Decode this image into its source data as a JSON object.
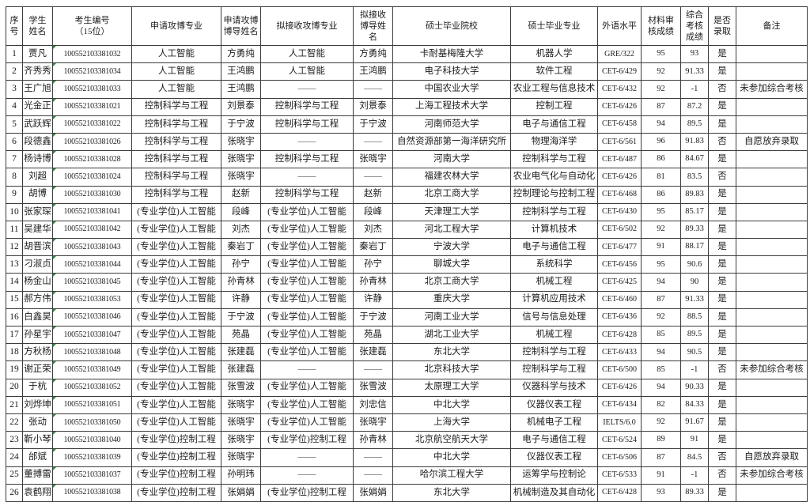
{
  "colors": {
    "grid": "#3c3c3c",
    "dash_text": "#4a4a4a",
    "error_indicator_green": "#2e8b3d"
  },
  "empty_marker": "——",
  "table": {
    "columns": [
      {
        "id": "index",
        "label": "序\n号"
      },
      {
        "id": "student-name",
        "label": "学生\n姓名"
      },
      {
        "id": "candidate-id",
        "label": "考生编号\n（15位）"
      },
      {
        "id": "applied-phd-major",
        "label": "申请攻博专业"
      },
      {
        "id": "applied-phd-advisor",
        "label": "申请攻博\n博导姓名"
      },
      {
        "id": "proposed-phd-major",
        "label": "拟接收攻博专业"
      },
      {
        "id": "proposed-phd-advisor",
        "label": "拟接收\n博导姓\n名"
      },
      {
        "id": "master-school",
        "label": "硕士毕业院校"
      },
      {
        "id": "master-major",
        "label": "硕士毕业专业"
      },
      {
        "id": "foreign-language",
        "label": "外语水平"
      },
      {
        "id": "material-review-score",
        "label": "材料审\n核成绩"
      },
      {
        "id": "comprehensive-score",
        "label": "综合\n考核\n成绩"
      },
      {
        "id": "admitted",
        "label": "是否\n录取"
      },
      {
        "id": "remarks",
        "label": "备注"
      }
    ],
    "rows": [
      [
        "1",
        "贾凡",
        "100552103381032",
        "人工智能",
        "方勇纯",
        "人工智能",
        "方勇纯",
        "卡耐基梅隆大学",
        "机器人学",
        "GRE/322",
        "95",
        "93",
        "是",
        ""
      ],
      [
        "2",
        "齐秀秀",
        "100552103381034",
        "人工智能",
        "王鸿鹏",
        "人工智能",
        "王鸿鹏",
        "电子科技大学",
        "软件工程",
        "CET-6/429",
        "92",
        "91.33",
        "是",
        ""
      ],
      [
        "3",
        "王广旭",
        "100552103381033",
        "人工智能",
        "王鸿鹏",
        "——",
        "——",
        "中国农业大学",
        "农业工程与信息技术",
        "CET-6/432",
        "92",
        "-1",
        "否",
        "未参加综合考核"
      ],
      [
        "4",
        "光金正",
        "100552103381021",
        "控制科学与工程",
        "刘景泰",
        "控制科学与工程",
        "刘景泰",
        "上海工程技术大学",
        "控制工程",
        "CET-6/426",
        "87",
        "87.2",
        "是",
        ""
      ],
      [
        "5",
        "武跃辉",
        "100552103381022",
        "控制科学与工程",
        "于宁波",
        "控制科学与工程",
        "于宁波",
        "河南师范大学",
        "电子与通信工程",
        "CET-6/458",
        "94",
        "89.5",
        "是",
        ""
      ],
      [
        "6",
        "段德鑫",
        "100552103381026",
        "控制科学与工程",
        "张晓宇",
        "——",
        "——",
        "自然资源部第一海洋研究所",
        "物理海洋学",
        "CET-6/561",
        "96",
        "91.83",
        "否",
        "自愿放弃录取"
      ],
      [
        "7",
        "杨诗博",
        "100552103381028",
        "控制科学与工程",
        "张晓宇",
        "控制科学与工程",
        "张晓宇",
        "河南大学",
        "控制科学与工程",
        "CET-6/487",
        "86",
        "84.67",
        "是",
        ""
      ],
      [
        "8",
        "刘超",
        "100552103381024",
        "控制科学与工程",
        "张晓宇",
        "——",
        "——",
        "福建农林大学",
        "农业电气化与自动化",
        "CET-6/426",
        "81",
        "83.5",
        "否",
        ""
      ],
      [
        "9",
        "胡博",
        "100552103381030",
        "控制科学与工程",
        "赵新",
        "控制科学与工程",
        "赵新",
        "北京工商大学",
        "控制理论与控制工程",
        "CET-6/468",
        "86",
        "89.83",
        "是",
        ""
      ],
      [
        "10",
        "张家琛",
        "100552103381041",
        "(专业学位)人工智能",
        "段峰",
        "(专业学位)人工智能",
        "段峰",
        "天津理工大学",
        "控制科学与工程",
        "CET-6/430",
        "95",
        "85.17",
        "是",
        ""
      ],
      [
        "11",
        "吴建华",
        "100552103381042",
        "(专业学位)人工智能",
        "刘杰",
        "(专业学位)人工智能",
        "刘杰",
        "河北工程大学",
        "计算机技术",
        "CET-6/502",
        "92",
        "89.33",
        "是",
        ""
      ],
      [
        "12",
        "胡晋滨",
        "100552103381043",
        "(专业学位)人工智能",
        "秦岩丁",
        "(专业学位)人工智能",
        "秦岩丁",
        "宁波大学",
        "电子与通信工程",
        "CET-6/477",
        "91",
        "88.17",
        "是",
        ""
      ],
      [
        "13",
        "刁淑贞",
        "100552103381044",
        "(专业学位)人工智能",
        "孙宁",
        "(专业学位)人工智能",
        "孙宁",
        "聊城大学",
        "系统科学",
        "CET-6/456",
        "95",
        "90.6",
        "是",
        ""
      ],
      [
        "14",
        "杨金山",
        "100552103381045",
        "(专业学位)人工智能",
        "孙青林",
        "(专业学位)人工智能",
        "孙青林",
        "北京工商大学",
        "机械工程",
        "CET-6/425",
        "94",
        "90",
        "是",
        ""
      ],
      [
        "15",
        "郝方伟",
        "100552103381053",
        "(专业学位)人工智能",
        "许静",
        "(专业学位)人工智能",
        "许静",
        "重庆大学",
        "计算机应用技术",
        "CET-6/460",
        "87",
        "91.33",
        "是",
        ""
      ],
      [
        "16",
        "白鑫昊",
        "100552103381046",
        "(专业学位)人工智能",
        "于宁波",
        "(专业学位)人工智能",
        "于宁波",
        "河南工业大学",
        "信号与信息处理",
        "CET-6/436",
        "92",
        "88.5",
        "是",
        ""
      ],
      [
        "17",
        "孙星宇",
        "100552103381047",
        "(专业学位)人工智能",
        "苑晶",
        "(专业学位)人工智能",
        "苑晶",
        "湖北工业大学",
        "机械工程",
        "CET-6/428",
        "85",
        "89.5",
        "是",
        ""
      ],
      [
        "18",
        "方秋杨",
        "100552103381048",
        "(专业学位)人工智能",
        "张建磊",
        "(专业学位)人工智能",
        "张建磊",
        "东北大学",
        "控制科学与工程",
        "CET-6/433",
        "94",
        "90.5",
        "是",
        ""
      ],
      [
        "19",
        "谢正荣",
        "100552103381049",
        "(专业学位)人工智能",
        "张建磊",
        "——",
        "——",
        "北京科技大学",
        "控制科学与工程",
        "CET-6/500",
        "85",
        "-1",
        "否",
        "未参加综合考核"
      ],
      [
        "20",
        "于杭",
        "100552103381052",
        "(专业学位)人工智能",
        "张雪波",
        "(专业学位)人工智能",
        "张雪波",
        "太原理工大学",
        "仪器科学与技术",
        "CET-6/426",
        "94",
        "90.33",
        "是",
        ""
      ],
      [
        "21",
        "刘烨坤",
        "100552103381051",
        "(专业学位)人工智能",
        "张晓宇",
        "(专业学位)人工智能",
        "刘忠信",
        "中北大学",
        "仪器仪表工程",
        "CET-6/434",
        "82",
        "84.33",
        "是",
        ""
      ],
      [
        "22",
        "张动",
        "100552103381050",
        "(专业学位)人工智能",
        "张晓宇",
        "(专业学位)人工智能",
        "张晓宇",
        "上海大学",
        "机械电子工程",
        "IELTS/6.0",
        "92",
        "91.67",
        "是",
        ""
      ],
      [
        "23",
        "靳小琴",
        "100552103381040",
        "(专业学位)控制工程",
        "张晓宇",
        "(专业学位)控制工程",
        "孙青林",
        "北京航空航天大学",
        "电子与通信工程",
        "CET-6/524",
        "89",
        "91",
        "是",
        ""
      ],
      [
        "24",
        "邰斌",
        "100552103381039",
        "(专业学位)控制工程",
        "张晓宇",
        "——",
        "——",
        "中北大学",
        "仪器仪表工程",
        "CET-6/506",
        "87",
        "84.5",
        "否",
        "自愿放弃录取"
      ],
      [
        "25",
        "董搏雷",
        "100552103381037",
        "(专业学位)控制工程",
        "孙明玮",
        "——",
        "——",
        "哈尔滨工程大学",
        "运筹学与控制论",
        "CET-6/533",
        "91",
        "-1",
        "否",
        "未参加综合考核"
      ],
      [
        "26",
        "袁鹤翔",
        "100552103381038",
        "(专业学位)控制工程",
        "张娟娟",
        "(专业学位)控制工程",
        "张娟娟",
        "东北大学",
        "机械制造及其自动化",
        "CET-6/428",
        "93",
        "89.33",
        "是",
        ""
      ]
    ]
  }
}
